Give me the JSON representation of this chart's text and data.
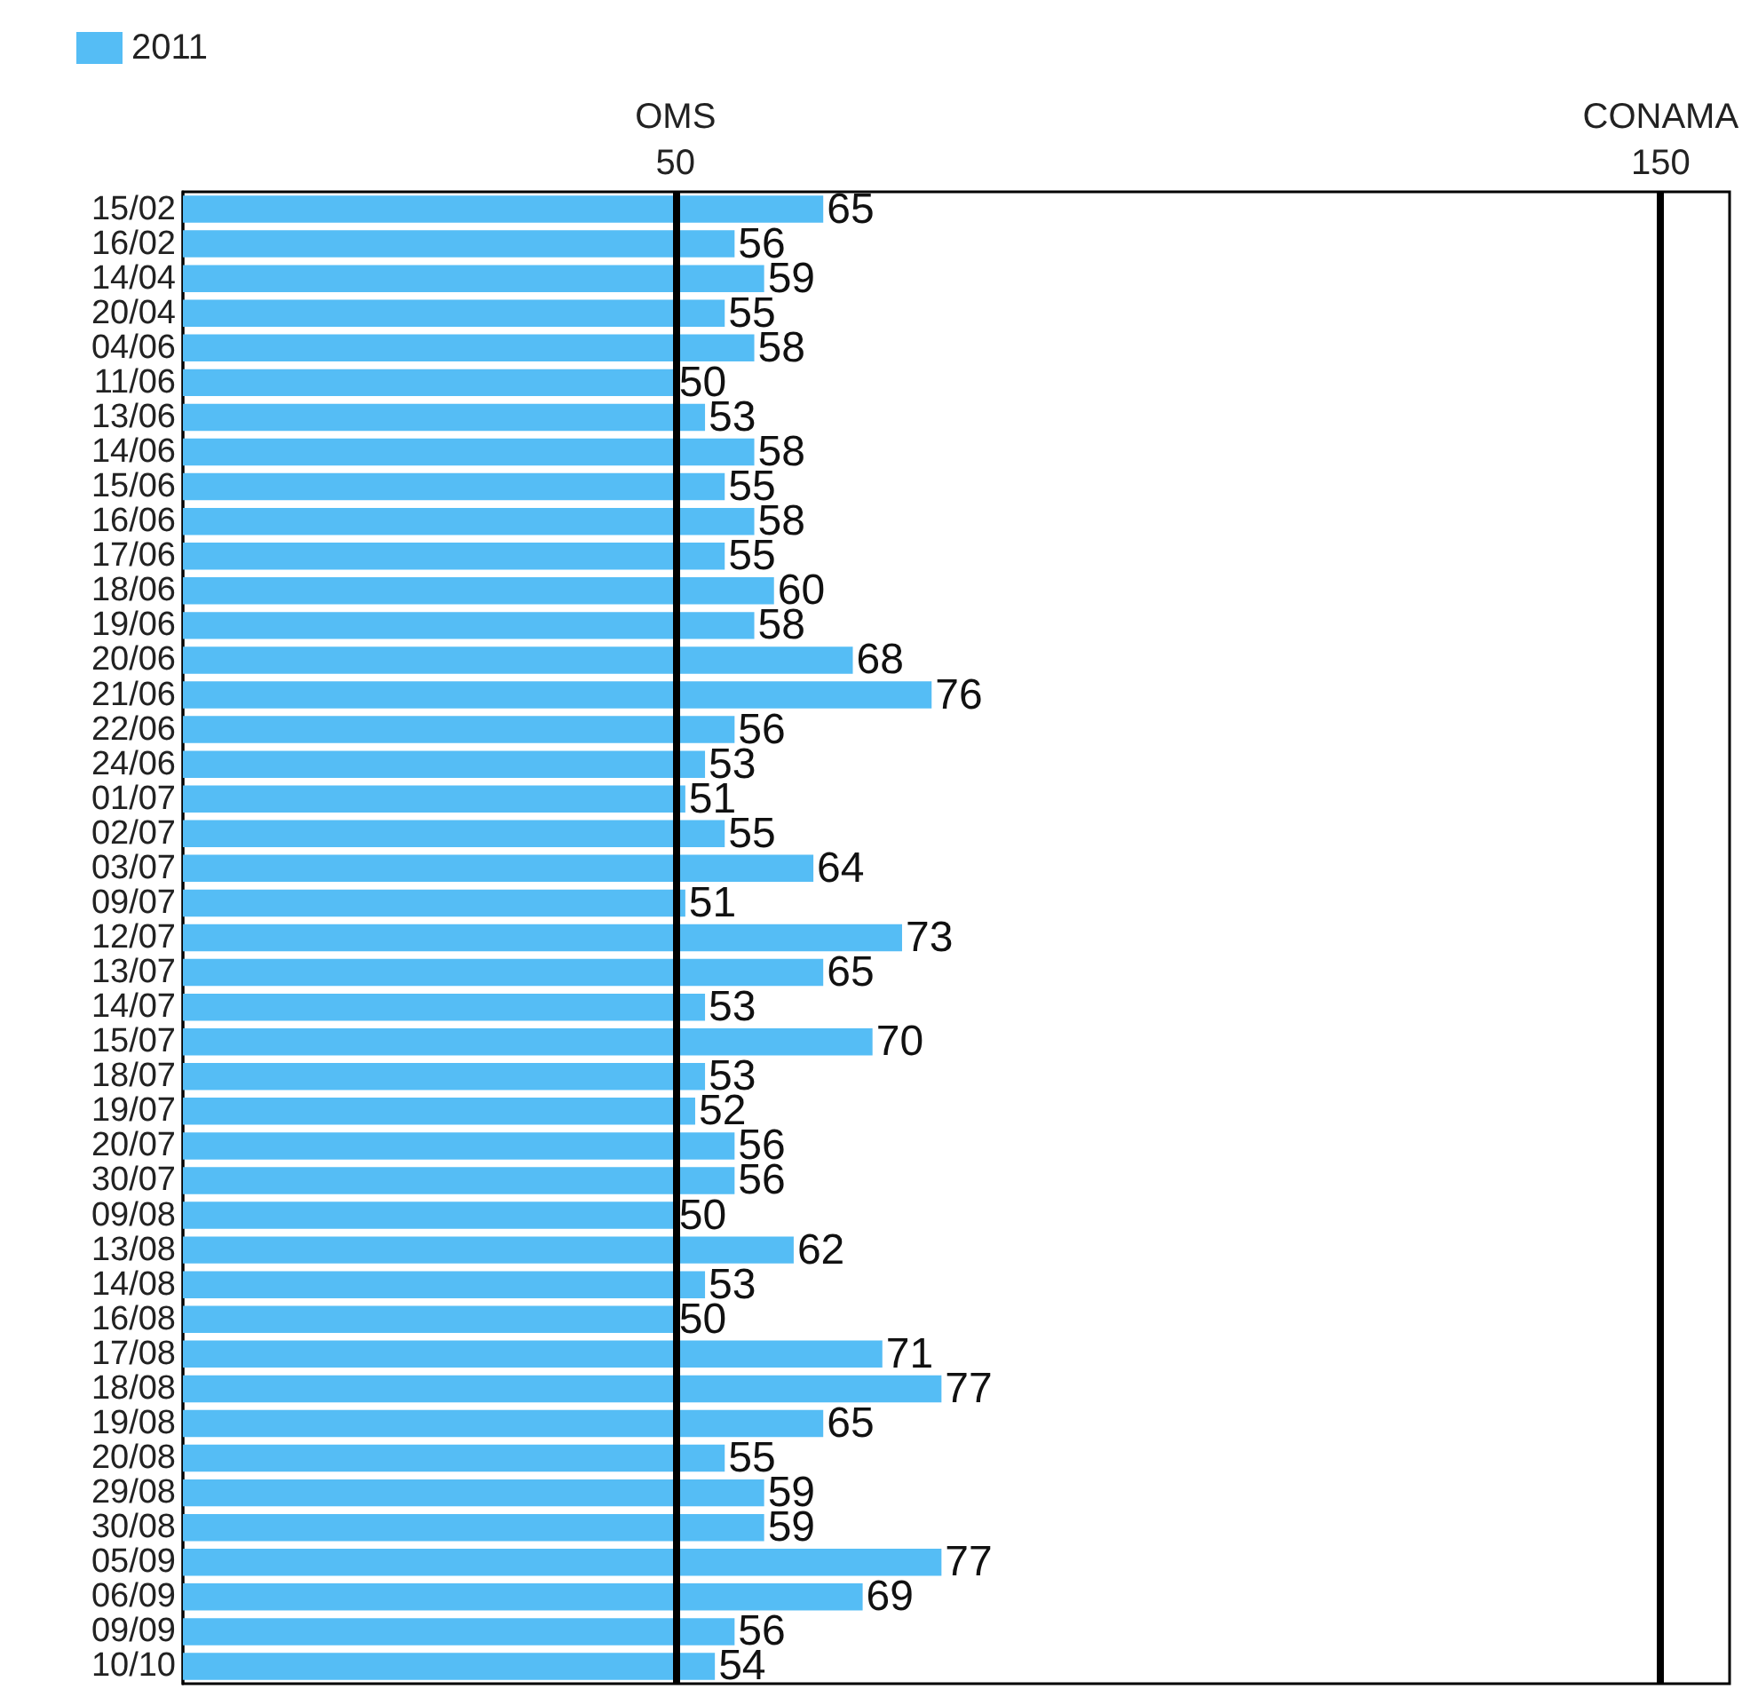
{
  "chart_data": {
    "type": "bar",
    "orientation": "horizontal",
    "categories": [
      "15/02",
      "16/02",
      "14/04",
      "20/04",
      "04/06",
      "11/06",
      "13/06",
      "14/06",
      "15/06",
      "16/06",
      "17/06",
      "18/06",
      "19/06",
      "20/06",
      "21/06",
      "22/06",
      "24/06",
      "01/07",
      "02/07",
      "03/07",
      "09/07",
      "12/07",
      "13/07",
      "14/07",
      "15/07",
      "18/07",
      "19/07",
      "20/07",
      "30/07",
      "09/08",
      "13/08",
      "14/08",
      "16/08",
      "17/08",
      "18/08",
      "19/08",
      "20/08",
      "29/08",
      "30/08",
      "05/09",
      "06/09",
      "09/09",
      "10/10"
    ],
    "series": [
      {
        "name": "2011",
        "color": "#55bdf5",
        "values": [
          65,
          56,
          59,
          55,
          58,
          50,
          53,
          58,
          55,
          58,
          55,
          60,
          58,
          68,
          76,
          56,
          53,
          51,
          55,
          64,
          51,
          73,
          65,
          53,
          70,
          53,
          52,
          56,
          56,
          50,
          62,
          53,
          50,
          71,
          77,
          65,
          55,
          59,
          59,
          77,
          69,
          56,
          54
        ]
      }
    ],
    "xlim": [
      0,
      157
    ],
    "xticks": [
      50,
      150
    ],
    "ref_lines": [
      {
        "axis": "x",
        "value": 50,
        "label": "OMS",
        "color": "#000000"
      },
      {
        "axis": "x",
        "value": 150,
        "label": "CONAMA",
        "color": "#000000"
      }
    ],
    "data_labels": true,
    "legend": "top left"
  }
}
